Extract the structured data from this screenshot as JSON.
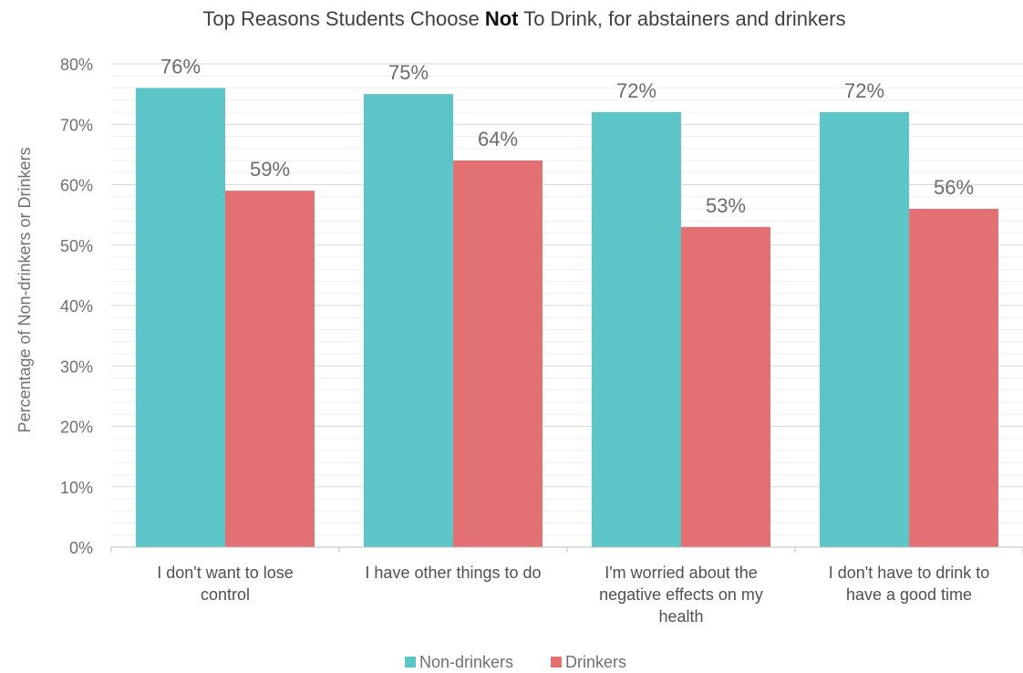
{
  "chart_data": {
    "type": "bar",
    "title_parts": [
      "Top Reasons Students Choose ",
      "Not",
      " To Drink, for abstainers and drinkers"
    ],
    "ylabel": "Percentage of Non-drinkers or Drinkers",
    "xlabel": "",
    "ylim": [
      0,
      80
    ],
    "y_ticks": [
      "0%",
      "10%",
      "20%",
      "30%",
      "40%",
      "50%",
      "60%",
      "70%",
      "80%"
    ],
    "categories": [
      [
        "I don't want to lose",
        "control"
      ],
      [
        "I have other things to do"
      ],
      [
        "I'm worried about the",
        "negative effects on my",
        "health"
      ],
      [
        "I don't have to drink to",
        "have a good time"
      ]
    ],
    "series": [
      {
        "name": "Non-drinkers",
        "color": "#5bc5c8",
        "values": [
          76,
          75,
          72,
          72
        ],
        "labels": [
          "76%",
          "75%",
          "72%",
          "72%"
        ]
      },
      {
        "name": "Drinkers",
        "color": "#e37173",
        "values": [
          59,
          64,
          53,
          56
        ],
        "labels": [
          "59%",
          "64%",
          "53%",
          "56%"
        ]
      }
    ],
    "grid": true,
    "legend_position": "bottom"
  }
}
